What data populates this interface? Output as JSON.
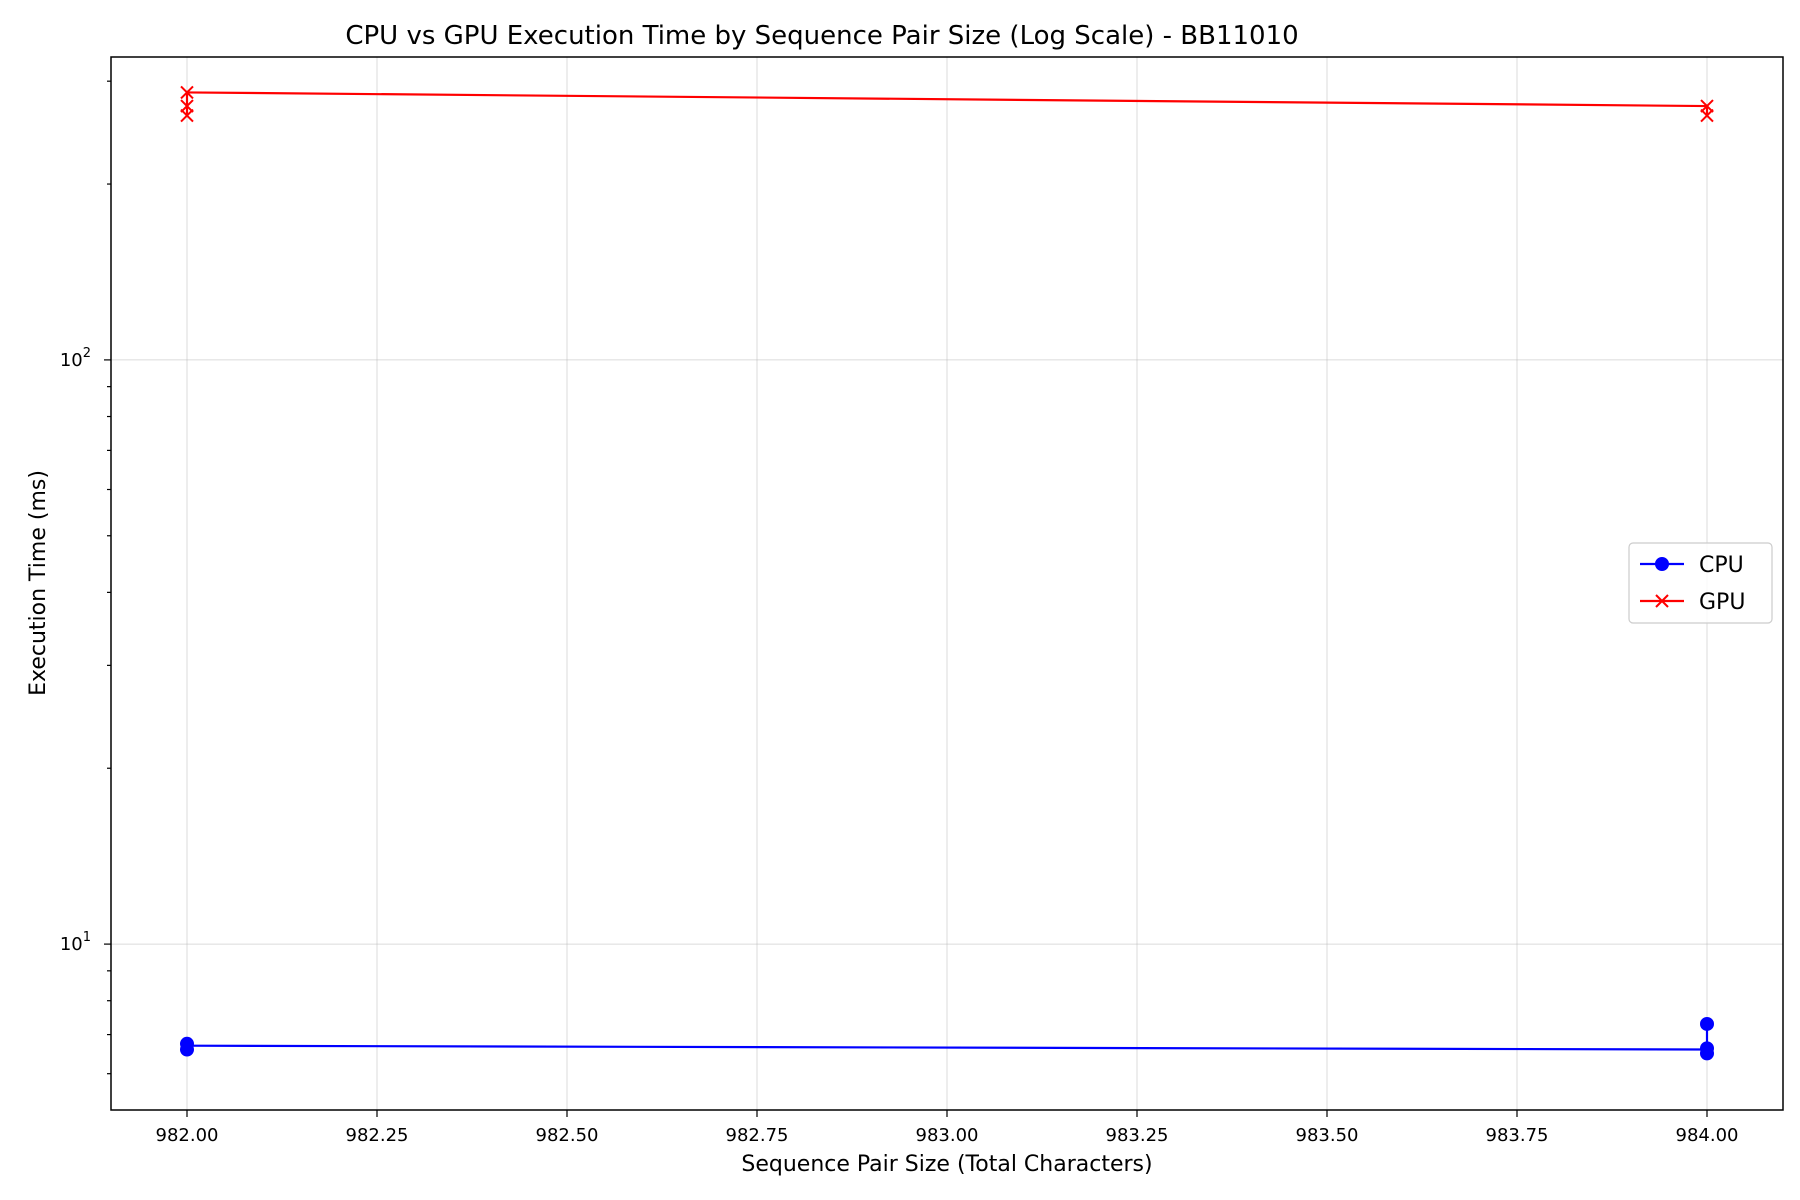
{
  "chart_data": {
    "type": "line",
    "title": "CPU vs GPU Execution Time by Sequence Pair Size (Log Scale) - BB11010",
    "xlabel": "Sequence Pair Size (Total Characters)",
    "ylabel": "Execution Time (ms)",
    "x_scale": "linear",
    "y_scale": "log",
    "xlim": [
      981.9,
      984.1
    ],
    "ylim": [
      5.2,
      330
    ],
    "x_ticks": [
      982.0,
      982.25,
      982.5,
      982.75,
      983.0,
      983.25,
      983.5,
      983.75,
      984.0
    ],
    "x_tick_labels": [
      "982.00",
      "982.25",
      "982.50",
      "982.75",
      "983.00",
      "983.25",
      "983.50",
      "983.75",
      "984.00"
    ],
    "y_major_ticks": [
      10,
      100
    ],
    "y_tick_labels": [
      {
        "base": "10",
        "exp": "1"
      },
      {
        "base": "10",
        "exp": "2"
      }
    ],
    "y_minor_ticks": [
      6,
      7,
      8,
      9,
      20,
      30,
      40,
      50,
      60,
      70,
      80,
      90,
      200,
      300
    ],
    "grid": true,
    "legend_position": "center-right",
    "series": [
      {
        "name": "CPU",
        "color": "#0000ff",
        "marker": "circle",
        "line": [
          [
            982,
            6.7
          ],
          [
            984,
            6.6
          ]
        ],
        "points": [
          [
            982,
            6.75
          ],
          [
            982,
            6.6
          ],
          [
            984,
            7.3
          ],
          [
            984,
            6.63
          ],
          [
            984,
            6.5
          ]
        ]
      },
      {
        "name": "GPU",
        "color": "#ff0000",
        "marker": "x",
        "line": [
          [
            982,
            287
          ],
          [
            984,
            272
          ]
        ],
        "points": [
          [
            982,
            287
          ],
          [
            982,
            272
          ],
          [
            982,
            262
          ],
          [
            984,
            272
          ],
          [
            984,
            262
          ]
        ]
      }
    ]
  }
}
